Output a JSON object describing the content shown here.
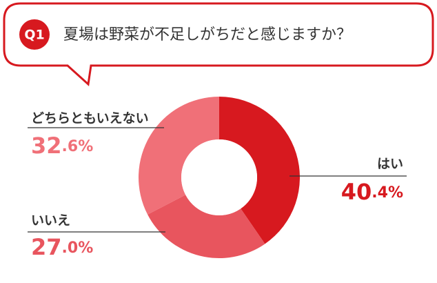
{
  "badge": "Q1",
  "chart_data": {
    "type": "donut",
    "title": "夏場は野菜が不足しがちだと感じますか？",
    "categories": [
      "はい",
      "いいえ",
      "どちらともいえない"
    ],
    "values": [
      40.4,
      27.0,
      32.6
    ],
    "value_labels": [
      "40.4%",
      "27.0%",
      "32.6%"
    ],
    "colors": [
      "#d7191f",
      "#e8555e",
      "#f07078"
    ]
  }
}
